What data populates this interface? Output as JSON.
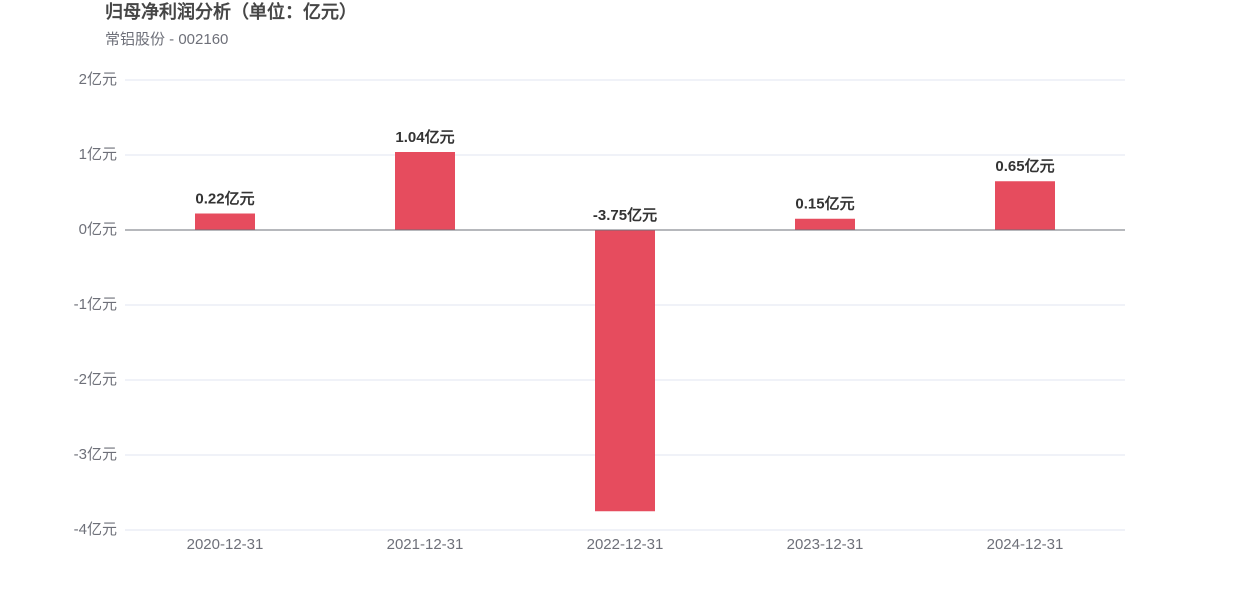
{
  "chart_data": {
    "type": "bar",
    "title": "归母净利润分析（单位：亿元）",
    "subtitle": "常铝股份 - 002160",
    "categories": [
      "2020-12-31",
      "2021-12-31",
      "2022-12-31",
      "2023-12-31",
      "2024-12-31"
    ],
    "values": [
      0.22,
      1.04,
      -3.75,
      0.15,
      0.65
    ],
    "value_labels": [
      "0.22亿元",
      "1.04亿元",
      "-3.75亿元",
      "0.15亿元",
      "0.65亿元"
    ],
    "color": "#e64c5e",
    "ylim": [
      -4,
      2
    ],
    "yticks": [
      {
        "value": -4,
        "label": "-4亿元"
      },
      {
        "value": -3,
        "label": "-3亿元"
      },
      {
        "value": -2,
        "label": "-2亿元"
      },
      {
        "value": -1,
        "label": "-1亿元"
      },
      {
        "value": 0,
        "label": "0亿元"
      },
      {
        "value": 1,
        "label": "1亿元"
      },
      {
        "value": 2,
        "label": "2亿元"
      }
    ],
    "grid": true
  }
}
